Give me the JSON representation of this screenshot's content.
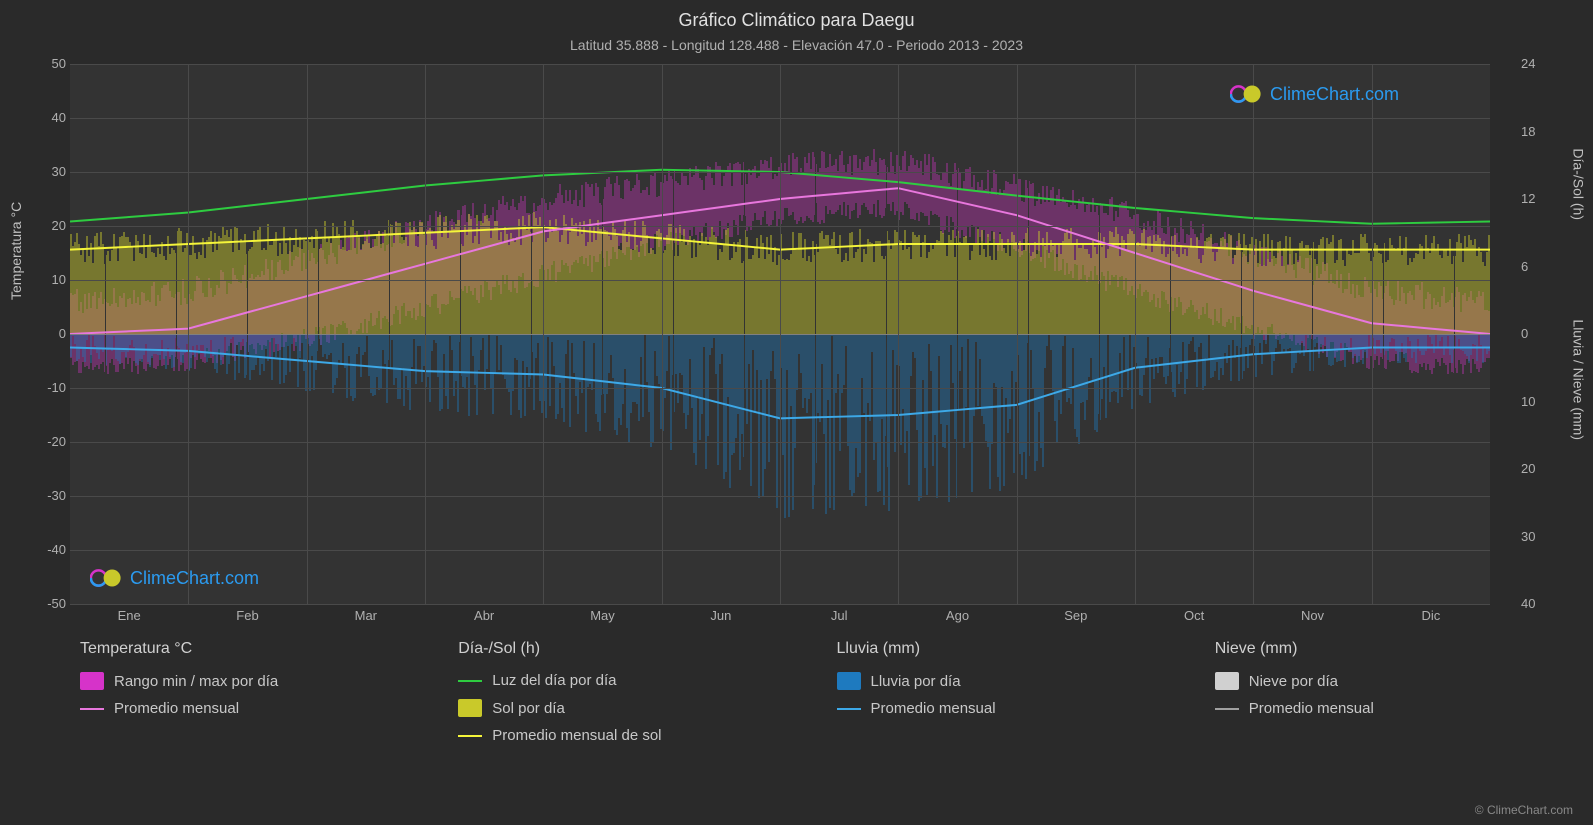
{
  "title": "Gráfico Climático para Daegu",
  "subtitle": "Latitud 35.888 - Longitud 128.488 - Elevación 47.0 - Periodo 2013 - 2023",
  "axes": {
    "left_label": "Temperatura °C",
    "right_label_top": "Día-/Sol (h)",
    "right_label_bottom": "Lluvia / Nieve (mm)",
    "left_ticks": [
      50,
      40,
      30,
      20,
      10,
      0,
      -10,
      -20,
      -30,
      -40,
      -50
    ],
    "right_ticks_top": [
      24,
      18,
      12,
      6,
      0
    ],
    "right_ticks_bottom": [
      10,
      20,
      30,
      40
    ],
    "x_labels": [
      "Ene",
      "Feb",
      "Mar",
      "Abr",
      "May",
      "Jun",
      "Jul",
      "Ago",
      "Sep",
      "Oct",
      "Nov",
      "Dic"
    ],
    "ylim_left": [
      -50,
      50
    ],
    "ylim_right_top": [
      0,
      24
    ],
    "ylim_right_bottom": [
      0,
      40
    ]
  },
  "colors": {
    "background": "#2a2a2a",
    "plot_bg": "#333333",
    "grid": "#4a4a4a",
    "zero": "#808080",
    "text": "#d0d0d0",
    "temp_range": "#d633c9",
    "temp_avg": "#e877dd",
    "daylight": "#2ecc40",
    "sun_day": "#c9c92a",
    "sun_avg": "#f5f53a",
    "rain_day": "#1e7abf",
    "rain_avg": "#3da9e8",
    "snow_day": "#d0d0d0",
    "snow_avg": "#a0a0a0",
    "brand": "#2b9bf0"
  },
  "series": {
    "temp_avg": [
      0,
      1,
      7,
      13,
      19,
      22,
      25,
      27,
      22,
      15,
      8,
      2
    ],
    "temp_min": [
      -6,
      -5,
      -1,
      5,
      11,
      17,
      22,
      23,
      16,
      8,
      1,
      -5
    ],
    "temp_max": [
      6,
      8,
      14,
      20,
      25,
      28,
      31,
      32,
      27,
      22,
      15,
      8
    ],
    "daylight_h": [
      10.0,
      10.8,
      12.0,
      13.2,
      14.1,
      14.6,
      14.4,
      13.5,
      12.3,
      11.2,
      10.3,
      9.8
    ],
    "sun_avg_h": [
      7.5,
      8.0,
      8.5,
      9.0,
      9.5,
      8.5,
      7.5,
      8.0,
      8.0,
      8.0,
      7.5,
      7.5
    ],
    "rain_avg_mm": [
      2.0,
      2.5,
      4.0,
      5.5,
      6.0,
      8.0,
      12.5,
      12.0,
      10.5,
      5.0,
      3.0,
      2.0
    ]
  },
  "daily_sample_count": 60,
  "watermark": "ClimeChart.com",
  "copyright": "© ClimeChart.com",
  "legend": {
    "groups": [
      {
        "header": "Temperatura °C",
        "items": [
          {
            "kind": "swatch",
            "color": "#d633c9",
            "label": "Rango min / max por día"
          },
          {
            "kind": "line",
            "color": "#e877dd",
            "label": "Promedio mensual"
          }
        ]
      },
      {
        "header": "Día-/Sol (h)",
        "items": [
          {
            "kind": "line",
            "color": "#2ecc40",
            "label": "Luz del día por día"
          },
          {
            "kind": "swatch",
            "color": "#c9c92a",
            "label": "Sol por día"
          },
          {
            "kind": "line",
            "color": "#f5f53a",
            "label": "Promedio mensual de sol"
          }
        ]
      },
      {
        "header": "Lluvia (mm)",
        "items": [
          {
            "kind": "swatch",
            "color": "#1e7abf",
            "label": "Lluvia por día"
          },
          {
            "kind": "line",
            "color": "#3da9e8",
            "label": "Promedio mensual"
          }
        ]
      },
      {
        "header": "Nieve (mm)",
        "items": [
          {
            "kind": "swatch",
            "color": "#d0d0d0",
            "label": "Nieve por día"
          },
          {
            "kind": "line",
            "color": "#a0a0a0",
            "label": "Promedio mensual"
          }
        ]
      }
    ]
  }
}
